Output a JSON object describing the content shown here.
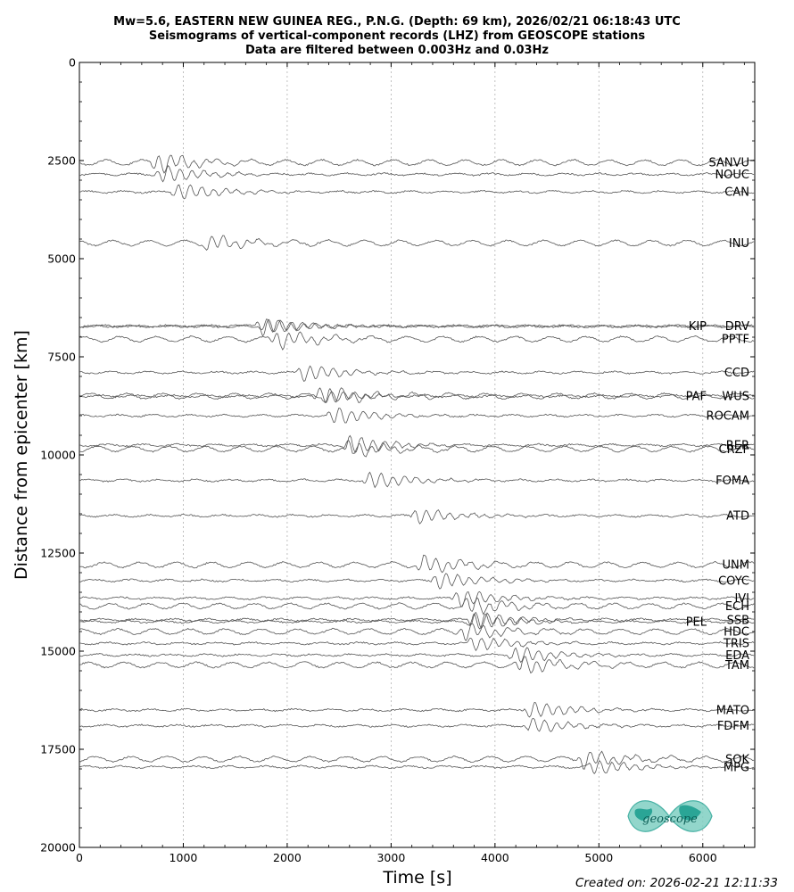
{
  "header": {
    "title_line1": "Mw=5.6, EASTERN NEW GUINEA REG., P.N.G. (Depth: 69 km), 2026/02/21 06:18:43 UTC",
    "title_line2": "Seismograms of vertical-component records (LHZ) from GEOSCOPE stations",
    "title_line3": "Data are filtered between 0.003Hz and 0.03Hz"
  },
  "footer": {
    "created": "Created on: 2026-02-21 12:11:33"
  },
  "logo": {
    "text": "geoscope",
    "color": "#2aa596"
  },
  "chart_data": {
    "type": "line",
    "title": "Mw=5.6, EASTERN NEW GUINEA REG., P.N.G. (Depth: 69 km), 2026/02/21 06:18:43 UTC",
    "xlabel": "Time [s]",
    "ylabel": "Distance from epicenter [km]",
    "xlim": [
      0,
      6500
    ],
    "ylim": [
      20000,
      0
    ],
    "y_inverted": true,
    "grid": "vertical dotted",
    "xticks": [
      "0",
      "1000",
      "2000",
      "3000",
      "4000",
      "5000",
      "6000"
    ],
    "yticks": [
      "0",
      "2500",
      "5000",
      "7500",
      "10000",
      "12500",
      "15000",
      "17500",
      "20000"
    ],
    "trace_color": "#555555",
    "stations": [
      {
        "name": "SANVU",
        "distance_km": 2550,
        "arrival_s": 750,
        "amplitude": 0.9
      },
      {
        "name": "NOUC",
        "distance_km": 2850,
        "arrival_s": 800,
        "amplitude": 0.8
      },
      {
        "name": "CAN",
        "distance_km": 3300,
        "arrival_s": 950,
        "amplitude": 0.8
      },
      {
        "name": "INU",
        "distance_km": 4600,
        "arrival_s": 1250,
        "amplitude": 0.7
      },
      {
        "name": "DRV",
        "distance_km": 6720,
        "arrival_s": 1750,
        "amplitude": 0.8
      },
      {
        "name": "KIP",
        "distance_km": 6720,
        "arrival_s": 1800,
        "amplitude": 0.7
      },
      {
        "name": "PPTF",
        "distance_km": 7050,
        "arrival_s": 1900,
        "amplitude": 0.8
      },
      {
        "name": "CCD",
        "distance_km": 7900,
        "arrival_s": 2150,
        "amplitude": 0.8
      },
      {
        "name": "WUS",
        "distance_km": 8500,
        "arrival_s": 2300,
        "amplitude": 0.7
      },
      {
        "name": "PAF",
        "distance_km": 8500,
        "arrival_s": 2400,
        "amplitude": 0.8
      },
      {
        "name": "ROCAM",
        "distance_km": 9000,
        "arrival_s": 2450,
        "amplitude": 0.8
      },
      {
        "name": "RER",
        "distance_km": 9750,
        "arrival_s": 2600,
        "amplitude": 0.9
      },
      {
        "name": "CRZF",
        "distance_km": 9850,
        "arrival_s": 2600,
        "amplitude": 0.7
      },
      {
        "name": "FOMA",
        "distance_km": 10650,
        "arrival_s": 2800,
        "amplitude": 0.8
      },
      {
        "name": "ATD",
        "distance_km": 11550,
        "arrival_s": 3250,
        "amplitude": 0.7
      },
      {
        "name": "UNM",
        "distance_km": 12800,
        "arrival_s": 3300,
        "amplitude": 0.8
      },
      {
        "name": "COYC",
        "distance_km": 13200,
        "arrival_s": 3450,
        "amplitude": 0.8
      },
      {
        "name": "IVI",
        "distance_km": 13650,
        "arrival_s": 3650,
        "amplitude": 0.8
      },
      {
        "name": "ECH",
        "distance_km": 13850,
        "arrival_s": 3750,
        "amplitude": 0.8
      },
      {
        "name": "SSB",
        "distance_km": 14200,
        "arrival_s": 3800,
        "amplitude": 0.8
      },
      {
        "name": "PEL",
        "distance_km": 14250,
        "arrival_s": 3800,
        "amplitude": 0.8
      },
      {
        "name": "HDC",
        "distance_km": 14500,
        "arrival_s": 3700,
        "amplitude": 0.8
      },
      {
        "name": "TRIS",
        "distance_km": 14800,
        "arrival_s": 3800,
        "amplitude": 0.7
      },
      {
        "name": "EDA",
        "distance_km": 15100,
        "arrival_s": 4200,
        "amplitude": 0.8
      },
      {
        "name": "TAM",
        "distance_km": 15350,
        "arrival_s": 4250,
        "amplitude": 0.8
      },
      {
        "name": "MATO",
        "distance_km": 16500,
        "arrival_s": 4350,
        "amplitude": 0.8
      },
      {
        "name": "FDFM",
        "distance_km": 16900,
        "arrival_s": 4350,
        "amplitude": 0.7
      },
      {
        "name": "SOK",
        "distance_km": 17750,
        "arrival_s": 4850,
        "amplitude": 0.8
      },
      {
        "name": "MPG",
        "distance_km": 17950,
        "arrival_s": 4950,
        "amplitude": 0.7
      }
    ]
  }
}
